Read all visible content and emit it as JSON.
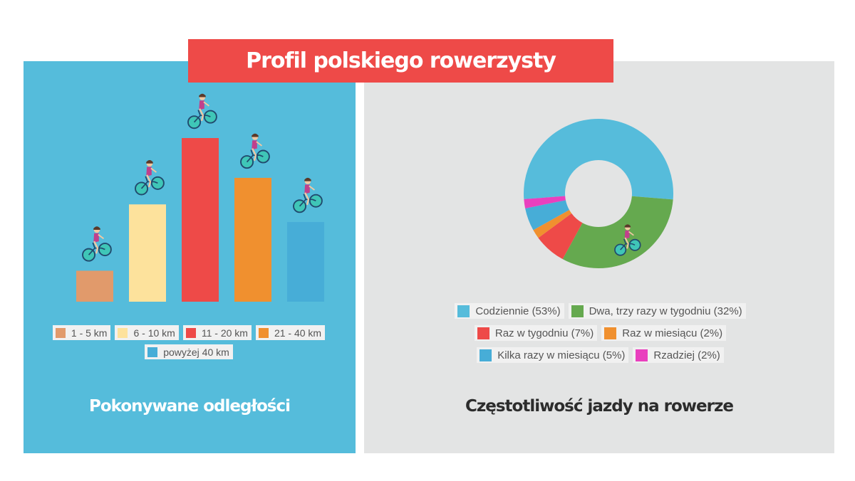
{
  "title": "Profil polskiego rowerzysty",
  "colors": {
    "left_panel": "#55bcdb",
    "right_panel": "#e3e4e4",
    "title_banner": "#ee4a48"
  },
  "chart_data": [
    {
      "type": "bar",
      "title": "Pokonywane odległości",
      "categories": [
        "1 - 5 km",
        "6 - 10 km",
        "11 - 20 km",
        "21 - 40 km",
        "powyżej 40 km"
      ],
      "values": [
        7,
        22,
        37,
        28,
        18
      ],
      "colors": [
        "#e19a6b",
        "#fde29c",
        "#ee4a48",
        "#f0902f",
        "#47add7"
      ],
      "legend": "bottom",
      "axes_visible": false,
      "icons": "cyclist-icon"
    },
    {
      "type": "pie",
      "style": "donut",
      "title": "Częstotliwość jazdy na rowerze",
      "labels": [
        "Codziennie (53%)",
        "Dwa, trzy razy w tygodniu (32%)",
        "Raz w tygodniu (7%)",
        "Raz w miesiącu (2%)",
        "Kilka razy w miesiącu (5%)",
        "Rzadziej (2%)"
      ],
      "values": [
        53,
        32,
        7,
        2,
        5,
        2
      ],
      "colors": [
        "#56bcdb",
        "#65a94f",
        "#ee4a48",
        "#f0902f",
        "#47add7",
        "#e93fbe"
      ],
      "legend": "bottom",
      "icons": "cyclist-icon"
    }
  ]
}
